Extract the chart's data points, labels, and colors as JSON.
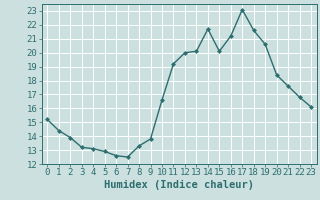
{
  "x": [
    0,
    1,
    2,
    3,
    4,
    5,
    6,
    7,
    8,
    9,
    10,
    11,
    12,
    13,
    14,
    15,
    16,
    17,
    18,
    19,
    20,
    21,
    22,
    23
  ],
  "y": [
    15.2,
    14.4,
    13.9,
    13.2,
    13.1,
    12.9,
    12.6,
    12.5,
    13.3,
    13.8,
    16.6,
    19.2,
    20.0,
    20.1,
    21.7,
    20.1,
    21.2,
    23.1,
    21.6,
    20.6,
    18.4,
    17.6,
    16.8,
    16.1
  ],
  "line_color": "#2d6e6e",
  "marker": "D",
  "marker_size": 2,
  "bg_color": "#cce0e0",
  "grid_color": "#ffffff",
  "xlabel": "Humidex (Indice chaleur)",
  "xlim": [
    -0.5,
    23.5
  ],
  "ylim": [
    12,
    23.5
  ],
  "yticks": [
    12,
    13,
    14,
    15,
    16,
    17,
    18,
    19,
    20,
    21,
    22,
    23
  ],
  "xticks": [
    0,
    1,
    2,
    3,
    4,
    5,
    6,
    7,
    8,
    9,
    10,
    11,
    12,
    13,
    14,
    15,
    16,
    17,
    18,
    19,
    20,
    21,
    22,
    23
  ],
  "xlabel_fontsize": 7.5,
  "tick_fontsize": 6.5,
  "label_color": "#2d6e6e",
  "linewidth": 1.0,
  "spine_color": "#2d6e6e"
}
